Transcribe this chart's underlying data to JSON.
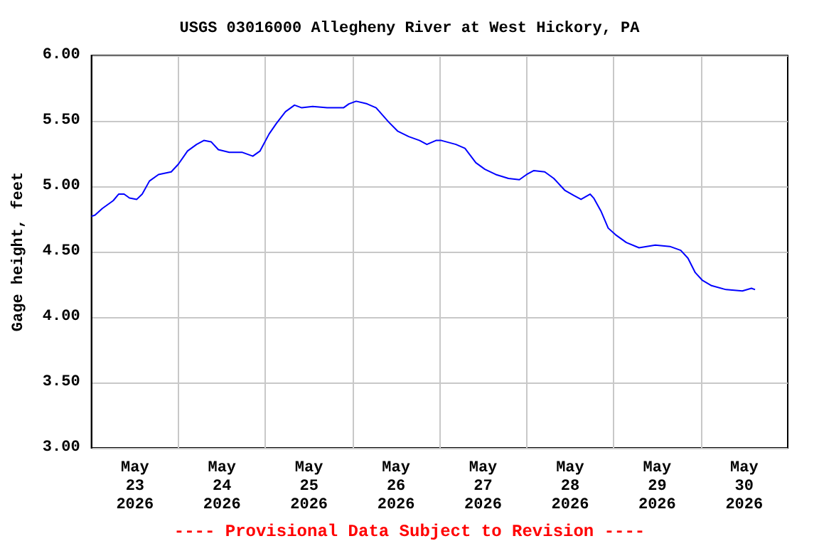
{
  "chart_data": {
    "type": "line",
    "title": "USGS 03016000 Allegheny River at West Hickory, PA",
    "ylabel": "Gage height, feet",
    "annotations": [
      "---- Provisional Data Subject to Revision ----"
    ],
    "x": [
      "2026-05-23T00:00",
      "2026-05-23T01:00",
      "2026-05-23T03:00",
      "2026-05-23T06:00",
      "2026-05-23T07:30",
      "2026-05-23T09:00",
      "2026-05-23T10:30",
      "2026-05-23T12:30",
      "2026-05-23T14:00",
      "2026-05-23T16:00",
      "2026-05-23T18:30",
      "2026-05-23T22:00",
      "2026-05-24T00:00",
      "2026-05-24T02:30",
      "2026-05-24T05:00",
      "2026-05-24T07:00",
      "2026-05-24T09:00",
      "2026-05-24T11:00",
      "2026-05-24T14:00",
      "2026-05-24T17:30",
      "2026-05-24T20:30",
      "2026-05-24T22:30",
      "2026-05-25T01:00",
      "2026-05-25T03:00",
      "2026-05-25T05:30",
      "2026-05-25T08:00",
      "2026-05-25T10:00",
      "2026-05-25T13:00",
      "2026-05-25T17:00",
      "2026-05-25T21:30",
      "2026-05-25T23:00",
      "2026-05-26T01:00",
      "2026-05-26T04:00",
      "2026-05-26T06:30",
      "2026-05-26T10:00",
      "2026-05-26T12:30",
      "2026-05-26T15:30",
      "2026-05-26T18:30",
      "2026-05-26T20:30",
      "2026-05-26T23:00",
      "2026-05-27T00:30",
      "2026-05-27T04:30",
      "2026-05-27T07:00",
      "2026-05-27T10:00",
      "2026-05-27T12:30",
      "2026-05-27T15:30",
      "2026-05-27T19:00",
      "2026-05-27T22:00",
      "2026-05-28T00:00",
      "2026-05-28T02:00",
      "2026-05-28T05:00",
      "2026-05-28T07:30",
      "2026-05-28T10:30",
      "2026-05-28T13:00",
      "2026-05-28T15:00",
      "2026-05-28T17:30",
      "2026-05-28T18:30",
      "2026-05-28T20:30",
      "2026-05-28T22:30",
      "2026-05-29T00:30",
      "2026-05-29T03:30",
      "2026-05-29T07:00",
      "2026-05-29T11:30",
      "2026-05-29T15:30",
      "2026-05-29T18:30",
      "2026-05-29T20:30",
      "2026-05-29T22:30",
      "2026-05-30T00:30",
      "2026-05-30T03:00",
      "2026-05-30T07:00",
      "2026-05-30T11:30",
      "2026-05-30T14:00",
      "2026-05-30T15:00"
    ],
    "series": [
      {
        "color": "#0000ff",
        "values": [
          4.77,
          4.78,
          4.83,
          4.89,
          4.94,
          4.94,
          4.91,
          4.9,
          4.94,
          5.04,
          5.09,
          5.11,
          5.17,
          5.27,
          5.32,
          5.35,
          5.34,
          5.28,
          5.26,
          5.26,
          5.23,
          5.27,
          5.4,
          5.48,
          5.57,
          5.62,
          5.6,
          5.61,
          5.6,
          5.6,
          5.63,
          5.65,
          5.63,
          5.6,
          5.49,
          5.42,
          5.38,
          5.35,
          5.32,
          5.35,
          5.35,
          5.32,
          5.29,
          5.18,
          5.13,
          5.09,
          5.06,
          5.05,
          5.09,
          5.12,
          5.11,
          5.06,
          4.97,
          4.93,
          4.9,
          4.94,
          4.91,
          4.81,
          4.68,
          4.63,
          4.57,
          4.53,
          4.55,
          4.54,
          4.51,
          4.45,
          4.34,
          4.28,
          4.24,
          4.21,
          4.2,
          4.22,
          4.21
        ]
      }
    ],
    "xlim": [
      "2026-05-23",
      "2026-05-31"
    ],
    "xticks": [
      {
        "value": "2026-05-23T12:00",
        "label": "May\n23\n2026"
      },
      {
        "value": "2026-05-24",
        "label": null
      },
      {
        "value": "2026-05-24T12:00",
        "label": "May\n24\n2026"
      },
      {
        "value": "2026-05-25",
        "label": null
      },
      {
        "value": "2026-05-25T12:00",
        "label": "May\n25\n2026"
      },
      {
        "value": "2026-05-26",
        "label": null
      },
      {
        "value": "2026-05-26T12:00",
        "label": "May\n26\n2026"
      },
      {
        "value": "2026-05-27",
        "label": null
      },
      {
        "value": "2026-05-27T12:00",
        "label": "May\n27\n2026"
      },
      {
        "value": "2026-05-28",
        "label": null
      },
      {
        "value": "2026-05-28T12:00",
        "label": "May\n28\n2026"
      },
      {
        "value": "2026-05-29",
        "label": null
      },
      {
        "value": "2026-05-29T12:00",
        "label": "May\n29\n2026"
      },
      {
        "value": "2026-05-30",
        "label": null
      },
      {
        "value": "2026-05-30T12:00",
        "label": "May\n30\n2026"
      }
    ],
    "ylim": [
      3,
      6
    ],
    "yticks": [
      {
        "value": 3,
        "label": "3.00"
      },
      {
        "value": 3.5,
        "label": "3.50"
      },
      {
        "value": 4,
        "label": "4.00"
      },
      {
        "value": 4.5,
        "label": "4.50"
      },
      {
        "value": 5,
        "label": "5.00"
      },
      {
        "value": 5.5,
        "label": "5.50"
      },
      {
        "value": 6,
        "label": "6.00"
      }
    ],
    "grid": true,
    "marker": "none",
    "line_style": "solid"
  }
}
